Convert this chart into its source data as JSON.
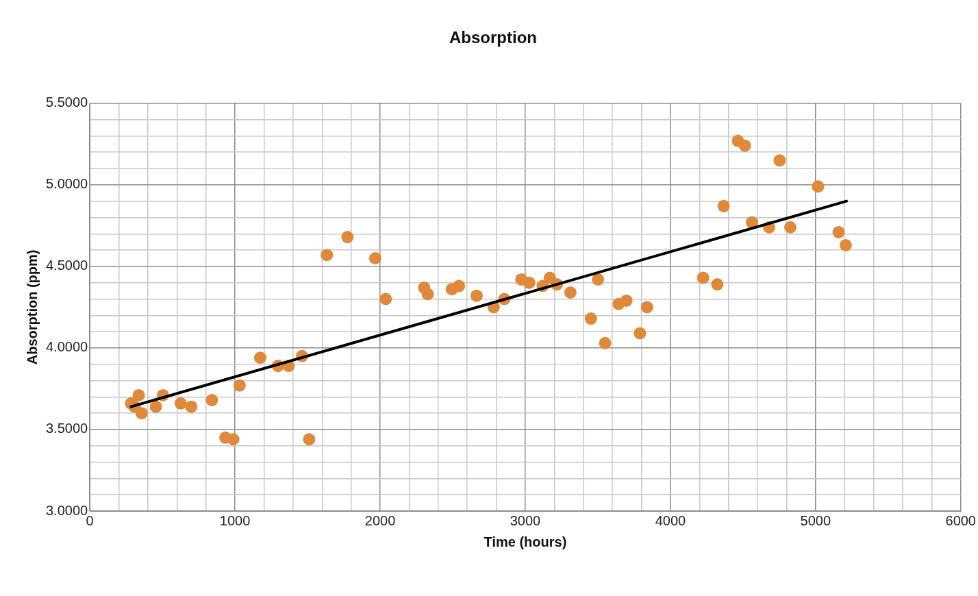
{
  "chart_data": {
    "type": "scatter",
    "title": "Absorption",
    "xlabel": "Time (hours)",
    "ylabel": "Absorption (ppm)",
    "xlim": [
      0,
      6000
    ],
    "xticks": [
      0,
      {
        "value": 200,
        "label": null
      },
      {
        "value": 400,
        "label": null
      },
      {
        "value": 600,
        "label": null
      },
      {
        "value": 800,
        "label": null
      },
      1000,
      {
        "value": 1200,
        "label": null
      },
      {
        "value": 1400,
        "label": null
      },
      {
        "value": 1600,
        "label": null
      },
      {
        "value": 1800,
        "label": null
      },
      2000,
      {
        "value": 2200,
        "label": null
      },
      {
        "value": 2400,
        "label": null
      },
      {
        "value": 2600,
        "label": null
      },
      {
        "value": 2800,
        "label": null
      },
      3000,
      {
        "value": 3200,
        "label": null
      },
      {
        "value": 3400,
        "label": null
      },
      {
        "value": 3600,
        "label": null
      },
      {
        "value": 3800,
        "label": null
      },
      4000,
      {
        "value": 4200,
        "label": null
      },
      {
        "value": 4400,
        "label": null
      },
      {
        "value": 4600,
        "label": null
      },
      {
        "value": 4800,
        "label": null
      },
      5000,
      {
        "value": 5200,
        "label": null
      },
      {
        "value": 5400,
        "label": null
      },
      {
        "value": 5600,
        "label": null
      },
      {
        "value": 5800,
        "label": null
      },
      6000
    ],
    "ylim": [
      3,
      5.5
    ],
    "yticks": [
      {
        "value": 3,
        "label": "3.0000"
      },
      {
        "value": 3.1,
        "label": null
      },
      {
        "value": 3.2,
        "label": null
      },
      {
        "value": 3.3,
        "label": null
      },
      {
        "value": 3.4,
        "label": null
      },
      {
        "value": 3.5,
        "label": "3.5000"
      },
      {
        "value": 3.6,
        "label": null
      },
      {
        "value": 3.7,
        "label": null
      },
      {
        "value": 3.8,
        "label": null
      },
      {
        "value": 3.9,
        "label": null
      },
      {
        "value": 4,
        "label": "4.0000"
      },
      {
        "value": 4.1,
        "label": null
      },
      {
        "value": 4.2,
        "label": null
      },
      {
        "value": 4.3,
        "label": null
      },
      {
        "value": 4.4,
        "label": null
      },
      {
        "value": 4.5,
        "label": "4.5000"
      },
      {
        "value": 4.6,
        "label": null
      },
      {
        "value": 4.7,
        "label": null
      },
      {
        "value": 4.8,
        "label": null
      },
      {
        "value": 4.9,
        "label": null
      },
      {
        "value": 5,
        "label": "5.0000"
      },
      {
        "value": 5.1,
        "label": null
      },
      {
        "value": 5.2,
        "label": null
      },
      {
        "value": 5.3,
        "label": null
      },
      {
        "value": 5.4,
        "label": null
      },
      {
        "value": 5.5,
        "label": "5.5000"
      }
    ],
    "grid": true,
    "legend": false,
    "marker": "circle",
    "series": [
      {
        "color": "#e0893a",
        "x": [
          284,
          308,
          337,
          357,
          455,
          504,
          626,
          699,
          841,
          934,
          988,
          1032,
          1174,
          1296,
          1369,
          1462,
          1511,
          1633,
          1775,
          1966,
          2039,
          2303,
          2328,
          2494,
          2543,
          2665,
          2782,
          2856,
          2973,
          3027,
          3120,
          3169,
          3218,
          3311,
          3452,
          3501,
          3550,
          3643,
          3697,
          3790,
          3839,
          4225,
          4323,
          4367,
          4465,
          4513,
          4562,
          4680,
          4753,
          4826,
          5017,
          5159,
          5208
        ],
        "values": [
          3.66,
          3.64,
          3.71,
          3.6,
          3.64,
          3.71,
          3.66,
          3.64,
          3.68,
          3.45,
          3.44,
          3.77,
          3.94,
          3.89,
          3.89,
          3.95,
          3.44,
          4.57,
          4.68,
          4.55,
          4.3,
          4.37,
          4.33,
          4.36,
          4.38,
          4.32,
          4.25,
          4.3,
          4.42,
          4.4,
          4.38,
          4.43,
          4.39,
          4.34,
          4.18,
          4.42,
          4.03,
          4.27,
          4.29,
          4.09,
          4.25,
          4.43,
          4.39,
          4.87,
          5.27,
          5.24,
          4.77,
          4.74,
          5.15,
          4.74,
          4.99,
          4.71,
          4.63
        ]
      },
      {
        "type": "line",
        "marker": "none",
        "color": "#000000",
        "x": [
          284,
          5213
        ],
        "values": [
          3.64,
          4.9
        ]
      }
    ]
  }
}
